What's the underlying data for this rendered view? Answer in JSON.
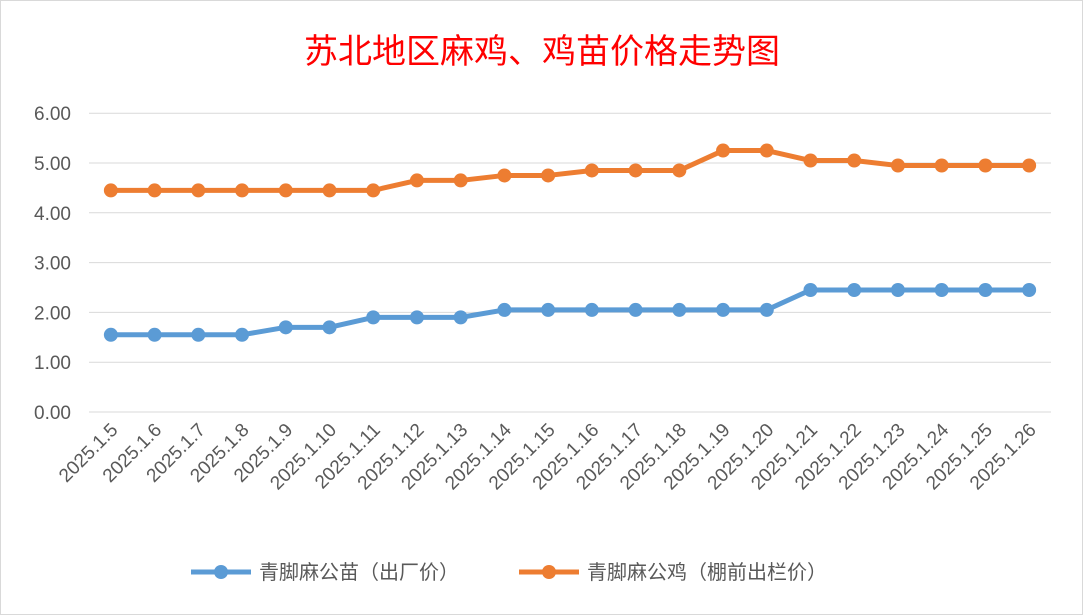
{
  "chart_data": {
    "type": "line",
    "title": "苏北地区麻鸡、鸡苗价格走势图",
    "categories": [
      "2025.1.5",
      "2025.1.6",
      "2025.1.7",
      "2025.1.8",
      "2025.1.9",
      "2025.1.10",
      "2025.1.11",
      "2025.1.12",
      "2025.1.13",
      "2025.1.14",
      "2025.1.15",
      "2025.1.16",
      "2025.1.17",
      "2025.1.18",
      "2025.1.19",
      "2025.1.20",
      "2025.1.21",
      "2025.1.22",
      "2025.1.23",
      "2025.1.24",
      "2025.1.25",
      "2025.1.26"
    ],
    "yticks": [
      "0.00",
      "1.00",
      "2.00",
      "3.00",
      "4.00",
      "5.00",
      "6.00"
    ],
    "ylim": [
      0,
      6
    ],
    "grid": true,
    "legend_position": "bottom",
    "series": [
      {
        "name": "青脚麻公苗（出厂价）",
        "color": "#5b9bd5",
        "values": [
          1.55,
          1.55,
          1.55,
          1.55,
          1.7,
          1.7,
          1.9,
          1.9,
          1.9,
          2.05,
          2.05,
          2.05,
          2.05,
          2.05,
          2.05,
          2.05,
          2.45,
          2.45,
          2.45,
          2.45,
          2.45,
          2.45
        ]
      },
      {
        "name": "青脚麻公鸡（棚前出栏价）",
        "color": "#ed7d31",
        "values": [
          4.45,
          4.45,
          4.45,
          4.45,
          4.45,
          4.45,
          4.45,
          4.65,
          4.65,
          4.75,
          4.75,
          4.85,
          4.85,
          4.85,
          5.25,
          5.25,
          5.05,
          5.05,
          4.95,
          4.95,
          4.95,
          4.95
        ]
      }
    ]
  }
}
